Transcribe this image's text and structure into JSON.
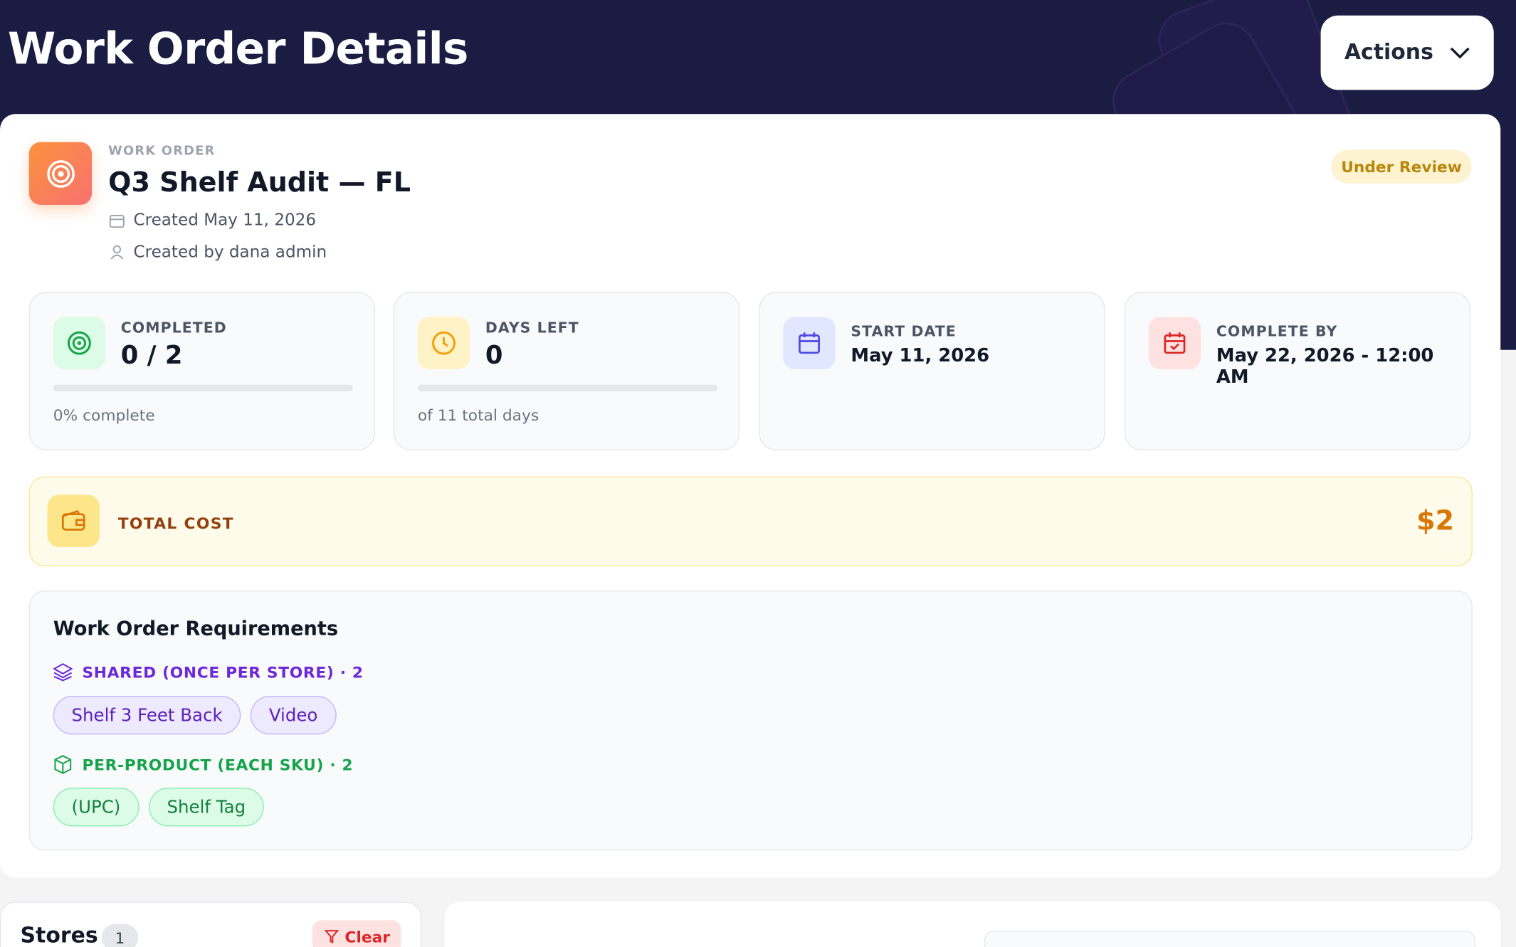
{
  "header": {
    "title": "Work Order Details",
    "actions": "Actions"
  },
  "work_order": {
    "label": "WORK ORDER",
    "title": "Q3 Shelf Audit — FL",
    "created": "Created May 11, 2026",
    "created_by": "Created by dana admin",
    "status": "Under Review"
  },
  "stats": [
    {
      "label": "COMPLETED",
      "value": "0 / 2",
      "note": "0% complete"
    },
    {
      "label": "DAYS LEFT",
      "value": "0",
      "note": "of 11 total days"
    },
    {
      "label": "START DATE",
      "value": "May 11, 2026"
    },
    {
      "label": "COMPLETE BY",
      "value": "May 22, 2026 - 12:00 AM"
    }
  ],
  "total_cost": {
    "label": "TOTAL COST",
    "value": "$2"
  },
  "requirements": {
    "title": "Work Order Requirements",
    "shared": {
      "label": "SHARED (ONCE PER STORE) · 2",
      "items": [
        "Shelf 3 Feet Back",
        "Video"
      ]
    },
    "per_product": {
      "label": "PER-PRODUCT (EACH SKU) · 2",
      "items": [
        "(UPC)",
        "Shelf Tag"
      ]
    }
  },
  "stores": {
    "title": "Stores",
    "count": "1",
    "clear": "Clear"
  }
}
